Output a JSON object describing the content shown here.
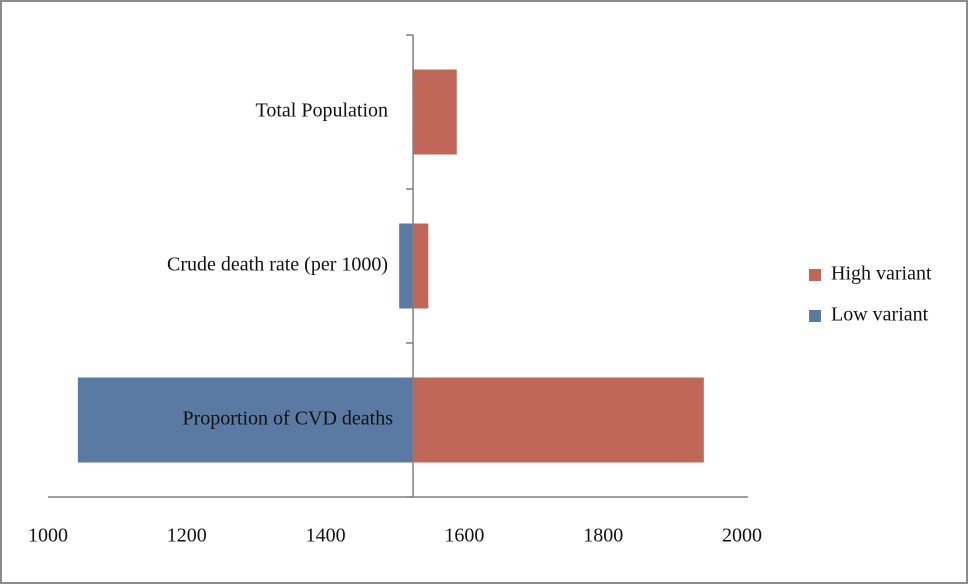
{
  "chart_data": {
    "type": "tornado",
    "categories": [
      "Total Population",
      "Crude death rate (per 1000)",
      "Proportion of CVD deaths"
    ],
    "series": [
      {
        "name": "High variant",
        "color": "#c0675a",
        "values": [
          1589,
          1548,
          1945
        ]
      },
      {
        "name": "Low variant",
        "color": "#5b7aa3",
        "values": [
          null,
          1506,
          1043
        ]
      }
    ],
    "base": 1526,
    "xlim": [
      1000,
      2000
    ],
    "xticks": [
      1000,
      1200,
      1400,
      1600,
      1800,
      2000
    ],
    "legend": "right"
  }
}
